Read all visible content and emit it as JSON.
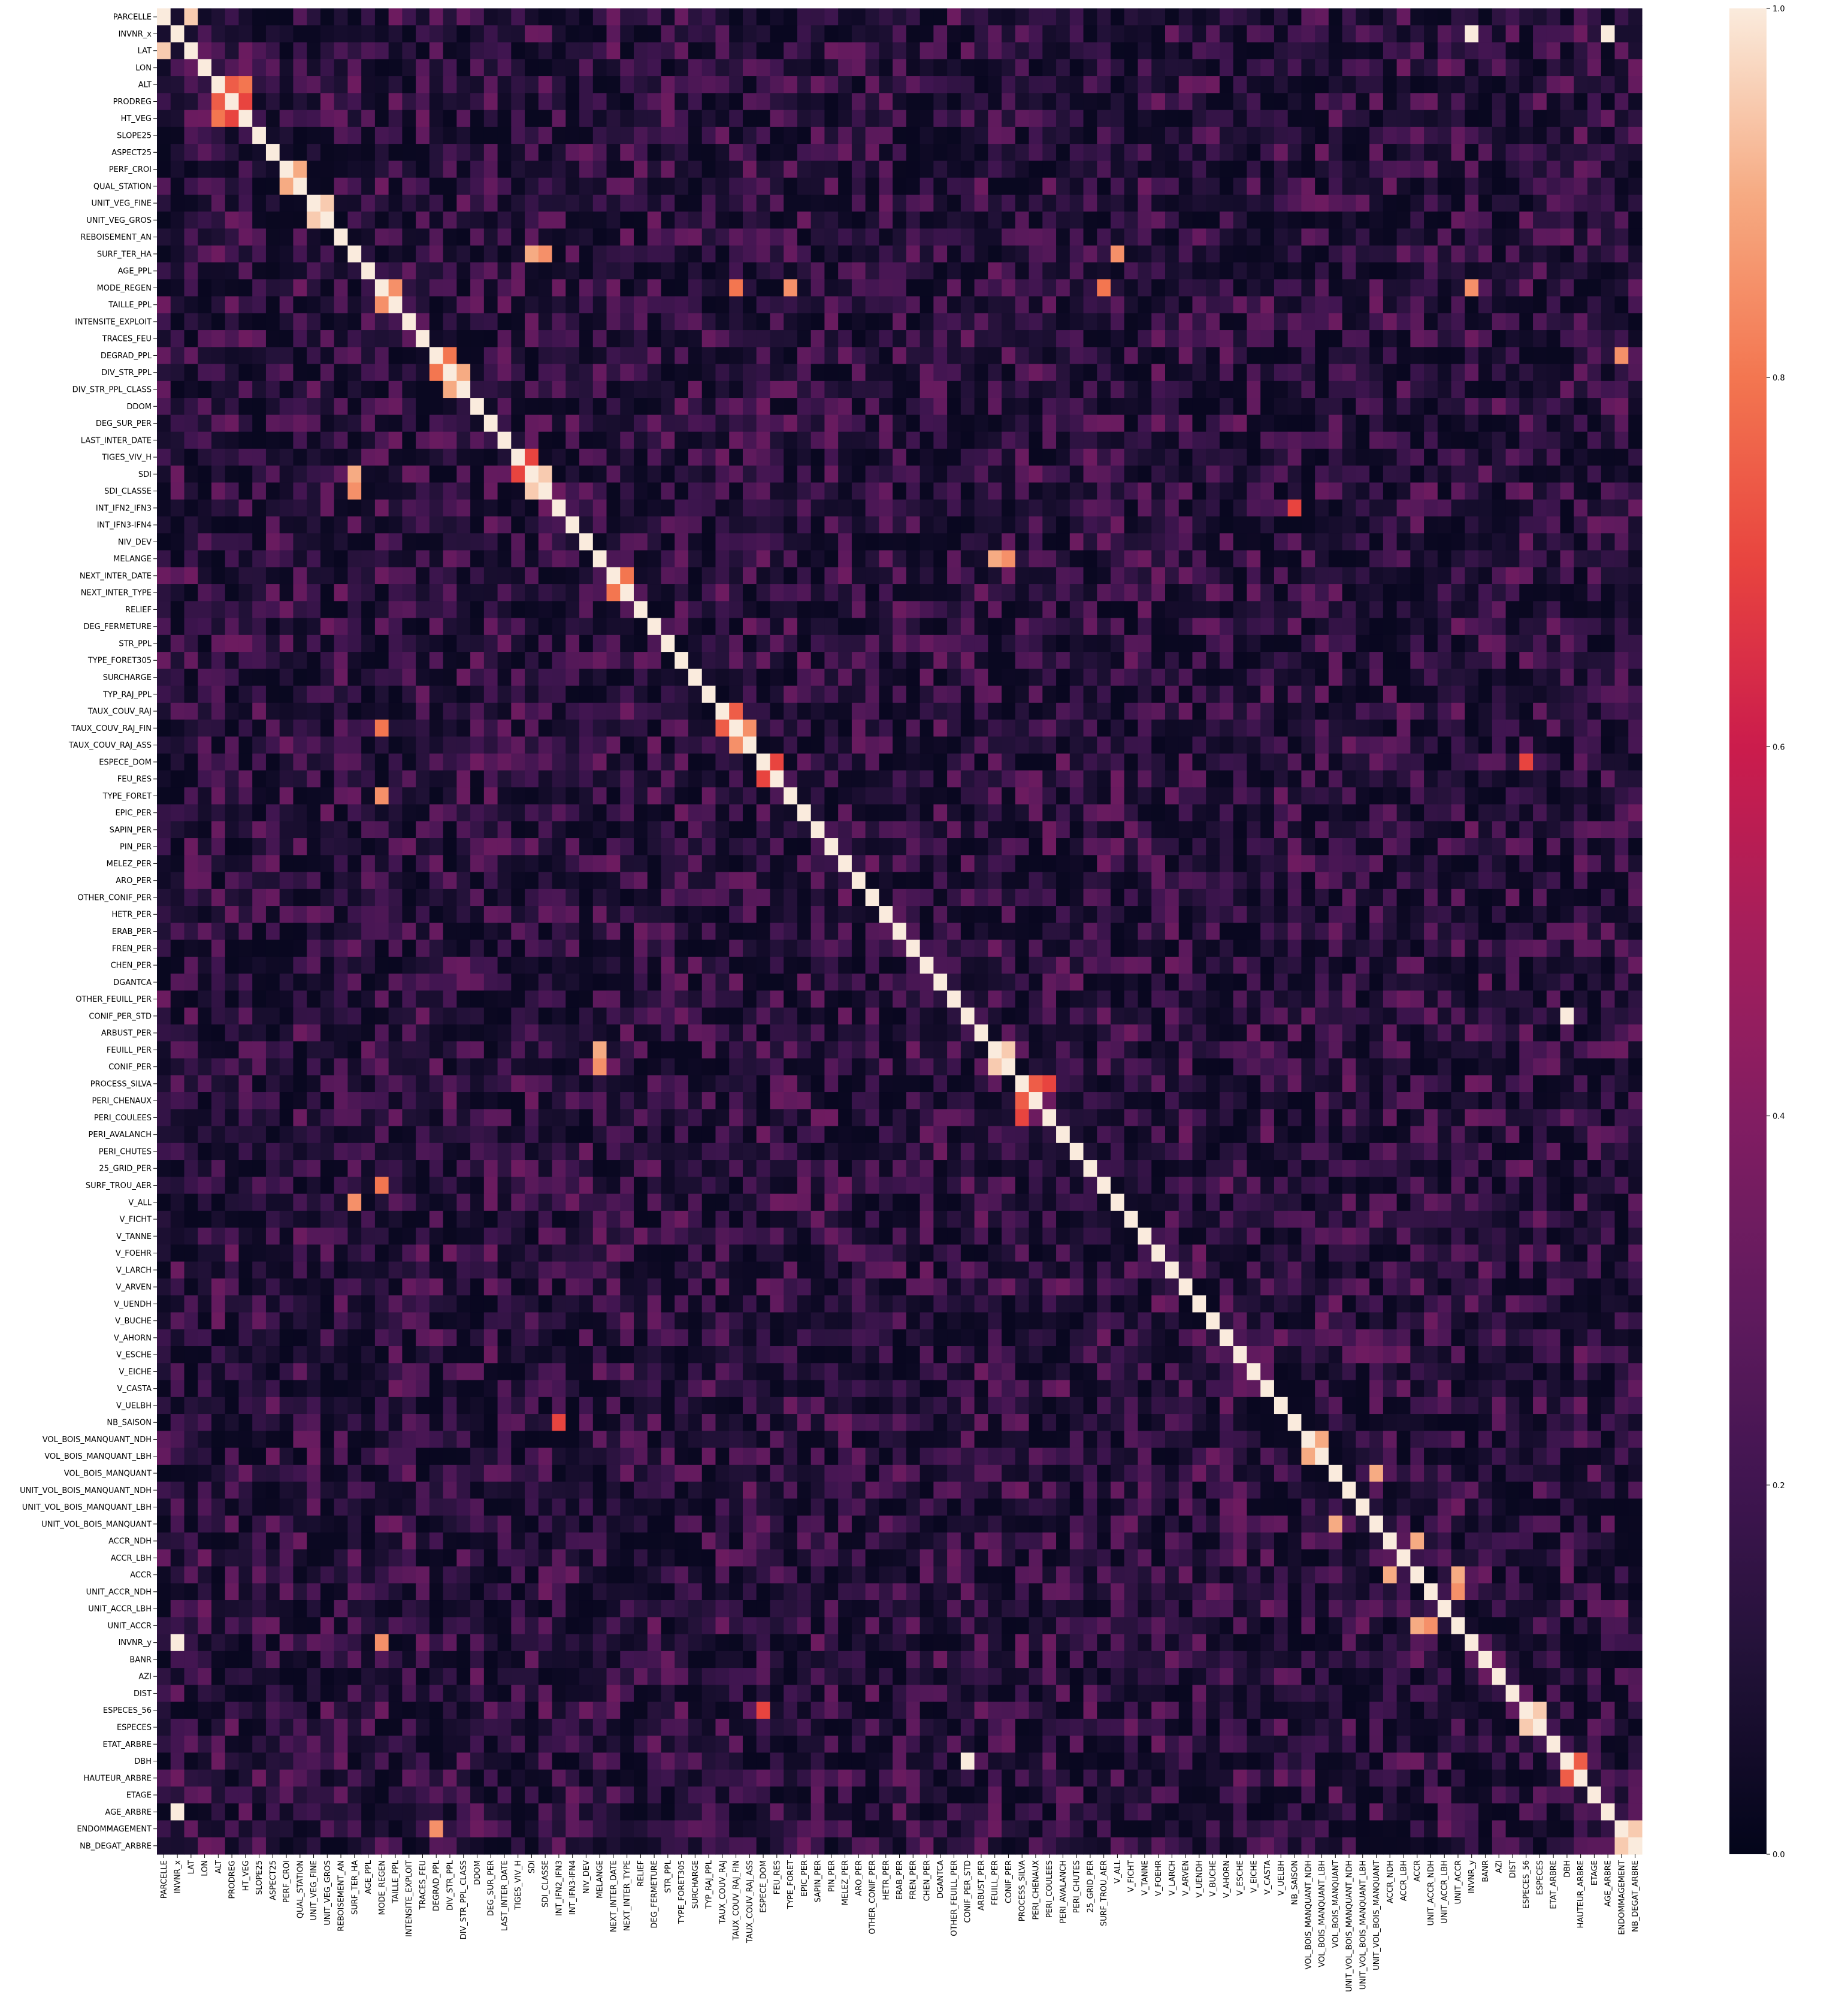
{
  "chart_data": {
    "type": "heatmap",
    "title": "",
    "xlabel": "",
    "ylabel": "",
    "variables": [
      "PARCELLE",
      "INVNR_x",
      "LAT",
      "LON",
      "ALT",
      "PRODREG",
      "HT_VEG",
      "SLOPE25",
      "ASPECT25",
      "PERF_CROI",
      "QUAL_STATION",
      "UNIT_VEG_FINE",
      "UNIT_VEG_GROS",
      "REBOISEMENT_AN",
      "SURF_TER_HA",
      "AGE_PPL",
      "MODE_REGEN",
      "TAILLE_PPL",
      "INTENSITE_EXPLOIT",
      "TRACES_FEU",
      "DEGRAD_PPL",
      "DIV_STR_PPL",
      "DIV_STR_PPL_CLASS",
      "DDOM",
      "DEG_SUR_PER",
      "LAST_INTER_DATE",
      "TIGES_VIV_H",
      "SDI",
      "SDI_CLASSE",
      "INT_IFN2_IFN3",
      "INT_IFN3-IFN4",
      "NIV_DEV",
      "MELANGE",
      "NEXT_INTER_DATE",
      "NEXT_INTER_TYPE",
      "RELIEF",
      "DEG_FERMETURE",
      "STR_PPL",
      "TYPE_FORET305",
      "SURCHARGE",
      "TYP_RAJ_PPL",
      "TAUX_COUV_RAJ",
      "TAUX_COUV_RAJ_FIN",
      "TAUX_COUV_RAJ_ASS",
      "ESPECE_DOM",
      "FEU_RES",
      "TYPE_FORET",
      "EPIC_PER",
      "SAPIN_PER",
      "PIN_PER",
      "MELEZ_PER",
      "ARO_PER",
      "OTHER_CONIF_PER",
      "HETR_PER",
      "ERAB_PER",
      "FREN_PER",
      "CHEN_PER",
      "DGANTCA",
      "OTHER_FEUILL_PER",
      "CONIF_PER_STD",
      "ARBUST_PER",
      "FEUILL_PER",
      "CONIF_PER",
      "PROCESS_SILVA",
      "PERI_CHENAUX",
      "PERI_COULEES",
      "PERI_AVALANCH",
      "PERI_CHUTES",
      "25_GRID_PER",
      "SURF_TROU_AER",
      "V_ALL",
      "V_FICHT",
      "V_TANNE",
      "V_FOEHR",
      "V_LARCH",
      "V_ARVEN",
      "V_UENDH",
      "V_BUCHE",
      "V_AHORN",
      "V_ESCHE",
      "V_EICHE",
      "V_CASTA",
      "V_UELBH",
      "NB_SAISON",
      "VOL_BOIS_MANQUANT_NDH",
      "VOL_BOIS_MANQUANT_LBH",
      "VOL_BOIS_MANQUANT",
      "UNIT_VOL_BOIS_MANQUANT_NDH",
      "UNIT_VOL_BOIS_MANQUANT_LBH",
      "UNIT_VOL_BOIS_MANQUANT",
      "ACCR_NDH",
      "ACCR_LBH",
      "ACCR",
      "UNIT_ACCR_NDH",
      "UNIT_ACCR_LBH",
      "UNIT_ACCR",
      "INVNR_y",
      "BANR",
      "AZI",
      "DIST",
      "ESPECES_56",
      "ESPECES",
      "ETAT_ARBRE",
      "DBH",
      "HAUTEUR_ARBRE",
      "ETAGE",
      "AGE_ARBRE",
      "ENDOMMAGEMENT",
      "NB_DEGAT_ARBRE"
    ],
    "value_range": [
      0.0,
      1.0
    ],
    "colormap": "rocket",
    "colorbar": {
      "ticks": [
        0.0,
        0.2,
        0.4,
        0.6,
        0.8,
        1.0
      ],
      "tick_labels": [
        "0.0",
        "0.2",
        "0.4",
        "0.6",
        "0.8",
        "1.0"
      ]
    },
    "diagonal_value": 1.0,
    "strong_cells": [
      [
        "INVNR_x",
        "INVNR_y",
        1.0
      ],
      [
        "INVNR_x",
        "AGE_ARBRE",
        1.0
      ],
      [
        "LAT",
        "PARCELLE",
        0.95
      ],
      [
        "ALT",
        "PRODREG",
        0.75
      ],
      [
        "ALT",
        "HT_VEG",
        0.8
      ],
      [
        "PRODREG",
        "HT_VEG",
        0.7
      ],
      [
        "PERF_CROI",
        "QUAL_STATION",
        0.9
      ],
      [
        "UNIT_VEG_FINE",
        "UNIT_VEG_GROS",
        0.95
      ],
      [
        "SURF_TER_HA",
        "SDI",
        0.9
      ],
      [
        "SURF_TER_HA",
        "SDI_CLASSE",
        0.85
      ],
      [
        "SURF_TER_HA",
        "V_ALL",
        0.85
      ],
      [
        "MODE_REGEN",
        "TAILLE_PPL",
        0.85
      ],
      [
        "MODE_REGEN",
        "TYPE_FORET",
        0.85
      ],
      [
        "MODE_REGEN",
        "SURF_TROU_AER",
        0.8
      ],
      [
        "MODE_REGEN",
        "TAUX_COUV_RAJ_FIN",
        0.8
      ],
      [
        "MODE_REGEN",
        "INVNR_y",
        0.85
      ],
      [
        "DEGRAD_PPL",
        "DIV_STR_PPL",
        0.8
      ],
      [
        "DIV_STR_PPL",
        "DIV_STR_PPL_CLASS",
        0.9
      ],
      [
        "TIGES_VIV_H",
        "SDI",
        0.7
      ],
      [
        "SDI",
        "SDI_CLASSE",
        0.95
      ],
      [
        "INT_IFN2_IFN3",
        "NB_SAISON",
        0.7
      ],
      [
        "MELANGE",
        "FEUILL_PER",
        0.9
      ],
      [
        "MELANGE",
        "CONIF_PER",
        0.85
      ],
      [
        "NEXT_INTER_DATE",
        "NEXT_INTER_TYPE",
        0.8
      ],
      [
        "TAUX_COUV_RAJ",
        "TAUX_COUV_RAJ_FIN",
        0.75
      ],
      [
        "TAUX_COUV_RAJ_FIN",
        "TAUX_COUV_RAJ_ASS",
        0.85
      ],
      [
        "ESPECE_DOM",
        "FEU_RES",
        0.7
      ],
      [
        "ESPECE_DOM",
        "ESPECES_56",
        0.7
      ],
      [
        "FEUILL_PER",
        "CONIF_PER",
        0.95
      ],
      [
        "PROCESS_SILVA",
        "PERI_CHENAUX",
        0.75
      ],
      [
        "PROCESS_SILVA",
        "PERI_COULEES",
        0.7
      ],
      [
        "VOL_BOIS_MANQUANT_NDH",
        "VOL_BOIS_MANQUANT_LBH",
        0.9
      ],
      [
        "VOL_BOIS_MANQUANT",
        "UNIT_VOL_BOIS_MANQUANT",
        0.9
      ],
      [
        "ACCR_NDH",
        "ACCR",
        0.9
      ],
      [
        "ACCR",
        "UNIT_ACCR",
        0.9
      ],
      [
        "UNIT_ACCR_NDH",
        "UNIT_ACCR",
        0.85
      ],
      [
        "ESPECES_56",
        "ESPECES",
        0.95
      ],
      [
        "DBH",
        "HAUTEUR_ARBRE",
        0.75
      ],
      [
        "CONIF_PER_STD",
        "DBH",
        1.0
      ],
      [
        "ENDOMMAGEMENT",
        "NB_DEGAT_ARBRE",
        0.95
      ],
      [
        "DEGRAD_PPL",
        "ENDOMMAGEMENT",
        0.85
      ]
    ]
  }
}
